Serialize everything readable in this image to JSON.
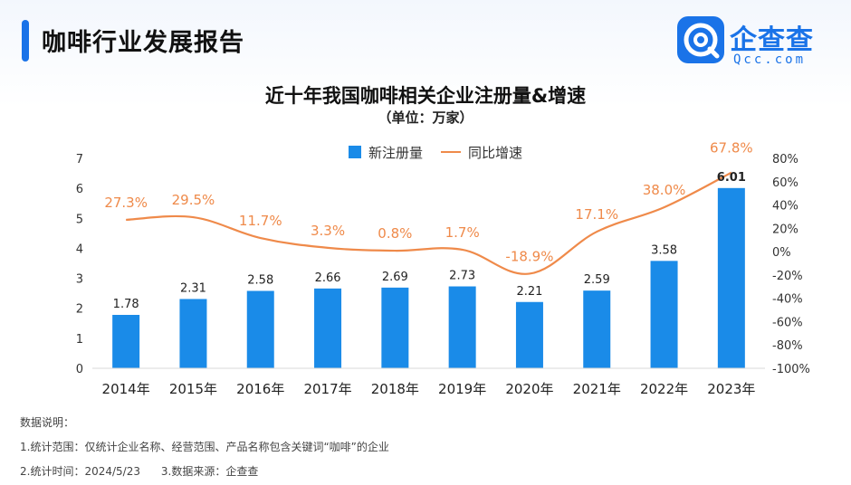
{
  "header": {
    "title": "咖啡行业发展报告",
    "logo_text": "企查查",
    "logo_sub": "Qcc.com"
  },
  "chart_data": {
    "type": "bar",
    "title": "近十年我国咖啡相关企业注册量&增速",
    "subtitle": "（单位：万家）",
    "categories": [
      "2014年",
      "2015年",
      "2016年",
      "2017年",
      "2018年",
      "2019年",
      "2020年",
      "2021年",
      "2022年",
      "2023年"
    ],
    "series": [
      {
        "name": "新注册量",
        "type": "bar",
        "values": [
          1.78,
          2.31,
          2.58,
          2.66,
          2.69,
          2.73,
          2.21,
          2.59,
          3.58,
          6.01
        ],
        "color": "#1a8be8"
      },
      {
        "name": "同比增速",
        "type": "line",
        "values": [
          27.3,
          29.5,
          11.7,
          3.3,
          0.8,
          1.7,
          -18.9,
          17.1,
          38.0,
          67.8
        ],
        "labels": [
          "27.3%",
          "29.5%",
          "11.7%",
          "3.3%",
          "0.8%",
          "1.7%",
          "-18.9%",
          "17.1%",
          "38.0%",
          "67.8%"
        ],
        "color": "#ef8a4a"
      }
    ],
    "ylim_left": [
      0,
      7
    ],
    "yticks_left": [
      0,
      1,
      2,
      3,
      4,
      5,
      6,
      7
    ],
    "ylim_right": [
      -100,
      80
    ],
    "yticks_right": [
      "-100%",
      "-80%",
      "-60%",
      "-40%",
      "-20%",
      "0%",
      "20%",
      "40%",
      "60%",
      "80%"
    ],
    "legend_position": "top-center",
    "grid": false
  },
  "notes": {
    "heading": "数据说明：",
    "line1": "1.统计范围：仅统计企业名称、经营范围、产品名称包含关键词“咖啡”的企业",
    "line2": "2.统计时间：2024/5/23      3.数据来源：企查查"
  }
}
